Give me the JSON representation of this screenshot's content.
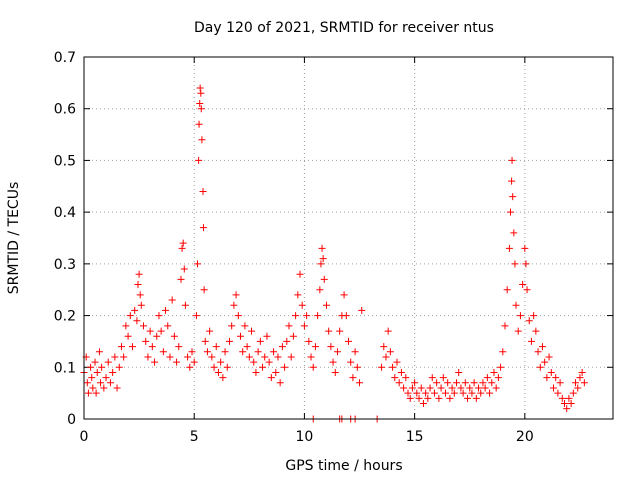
{
  "chart_data": {
    "type": "scatter",
    "title": "Day 120 of 2021, SRMTID for receiver ntus",
    "xlabel": "GPS time / hours",
    "ylabel": "SRMTID / TECUs",
    "xlim": [
      0,
      24
    ],
    "ylim": [
      0,
      0.7
    ],
    "xticks": [
      0,
      5,
      10,
      15,
      20
    ],
    "yticks": [
      0,
      0.1,
      0.2,
      0.3,
      0.4,
      0.5,
      0.6,
      0.7
    ],
    "grid": true,
    "marker": "+",
    "colors": {
      "points": "#ff0000",
      "axes": "#000000",
      "grid": "#a0a0a0"
    },
    "series": [
      {
        "name": "SRMTID",
        "points": [
          [
            0.0,
            0.09
          ],
          [
            0.1,
            0.12
          ],
          [
            0.15,
            0.07
          ],
          [
            0.2,
            0.05
          ],
          [
            0.3,
            0.1
          ],
          [
            0.35,
            0.08
          ],
          [
            0.4,
            0.06
          ],
          [
            0.5,
            0.11
          ],
          [
            0.55,
            0.05
          ],
          [
            0.6,
            0.09
          ],
          [
            0.7,
            0.13
          ],
          [
            0.75,
            0.07
          ],
          [
            0.8,
            0.1
          ],
          [
            0.9,
            0.06
          ],
          [
            1.0,
            0.08
          ],
          [
            1.1,
            0.11
          ],
          [
            1.2,
            0.07
          ],
          [
            1.3,
            0.09
          ],
          [
            1.4,
            0.12
          ],
          [
            1.5,
            0.06
          ],
          [
            1.6,
            0.1
          ],
          [
            1.7,
            0.14
          ],
          [
            1.8,
            0.12
          ],
          [
            1.9,
            0.18
          ],
          [
            2.0,
            0.16
          ],
          [
            2.1,
            0.2
          ],
          [
            2.2,
            0.14
          ],
          [
            2.3,
            0.21
          ],
          [
            2.4,
            0.19
          ],
          [
            2.45,
            0.26
          ],
          [
            2.5,
            0.28
          ],
          [
            2.55,
            0.24
          ],
          [
            2.6,
            0.22
          ],
          [
            2.7,
            0.18
          ],
          [
            2.8,
            0.15
          ],
          [
            2.9,
            0.12
          ],
          [
            3.0,
            0.17
          ],
          [
            3.1,
            0.14
          ],
          [
            3.2,
            0.11
          ],
          [
            3.3,
            0.16
          ],
          [
            3.4,
            0.2
          ],
          [
            3.5,
            0.17
          ],
          [
            3.6,
            0.13
          ],
          [
            3.7,
            0.21
          ],
          [
            3.8,
            0.18
          ],
          [
            3.9,
            0.12
          ],
          [
            4.0,
            0.23
          ],
          [
            4.1,
            0.16
          ],
          [
            4.2,
            0.11
          ],
          [
            4.3,
            0.14
          ],
          [
            4.4,
            0.27
          ],
          [
            4.45,
            0.33
          ],
          [
            4.5,
            0.34
          ],
          [
            4.55,
            0.29
          ],
          [
            4.6,
            0.22
          ],
          [
            4.7,
            0.12
          ],
          [
            4.8,
            0.1
          ],
          [
            4.9,
            0.13
          ],
          [
            5.0,
            0.11
          ],
          [
            5.1,
            0.2
          ],
          [
            5.15,
            0.3
          ],
          [
            5.2,
            0.5
          ],
          [
            5.22,
            0.57
          ],
          [
            5.25,
            0.61
          ],
          [
            5.27,
            0.64
          ],
          [
            5.3,
            0.63
          ],
          [
            5.32,
            0.6
          ],
          [
            5.35,
            0.54
          ],
          [
            5.4,
            0.44
          ],
          [
            5.42,
            0.37
          ],
          [
            5.45,
            0.25
          ],
          [
            5.5,
            0.15
          ],
          [
            5.6,
            0.13
          ],
          [
            5.7,
            0.17
          ],
          [
            5.8,
            0.12
          ],
          [
            5.9,
            0.1
          ],
          [
            6.0,
            0.14
          ],
          [
            6.1,
            0.09
          ],
          [
            6.2,
            0.11
          ],
          [
            6.3,
            0.08
          ],
          [
            6.4,
            0.13
          ],
          [
            6.5,
            0.1
          ],
          [
            6.6,
            0.15
          ],
          [
            6.7,
            0.18
          ],
          [
            6.8,
            0.22
          ],
          [
            6.9,
            0.24
          ],
          [
            7.0,
            0.2
          ],
          [
            7.1,
            0.16
          ],
          [
            7.2,
            0.13
          ],
          [
            7.3,
            0.18
          ],
          [
            7.4,
            0.14
          ],
          [
            7.5,
            0.12
          ],
          [
            7.6,
            0.17
          ],
          [
            7.7,
            0.11
          ],
          [
            7.8,
            0.09
          ],
          [
            7.9,
            0.13
          ],
          [
            8.0,
            0.15
          ],
          [
            8.1,
            0.1
          ],
          [
            8.2,
            0.12
          ],
          [
            8.3,
            0.16
          ],
          [
            8.4,
            0.11
          ],
          [
            8.5,
            0.08
          ],
          [
            8.6,
            0.13
          ],
          [
            8.7,
            0.09
          ],
          [
            8.8,
            0.12
          ],
          [
            8.9,
            0.07
          ],
          [
            9.0,
            0.14
          ],
          [
            9.1,
            0.1
          ],
          [
            9.2,
            0.15
          ],
          [
            9.3,
            0.18
          ],
          [
            9.4,
            0.12
          ],
          [
            9.5,
            0.16
          ],
          [
            9.6,
            0.2
          ],
          [
            9.7,
            0.24
          ],
          [
            9.8,
            0.28
          ],
          [
            9.9,
            0.22
          ],
          [
            10.0,
            0.18
          ],
          [
            10.1,
            0.2
          ],
          [
            10.2,
            0.15
          ],
          [
            10.3,
            0.12
          ],
          [
            10.4,
            0.1
          ],
          [
            10.5,
            0.14
          ],
          [
            10.6,
            0.2
          ],
          [
            10.7,
            0.25
          ],
          [
            10.75,
            0.3
          ],
          [
            10.8,
            0.33
          ],
          [
            10.85,
            0.31
          ],
          [
            10.9,
            0.27
          ],
          [
            11.0,
            0.22
          ],
          [
            11.1,
            0.17
          ],
          [
            11.2,
            0.14
          ],
          [
            11.3,
            0.11
          ],
          [
            11.4,
            0.09
          ],
          [
            11.5,
            0.13
          ],
          [
            11.6,
            0.17
          ],
          [
            11.7,
            0.2
          ],
          [
            11.8,
            0.24
          ],
          [
            11.9,
            0.2
          ],
          [
            12.0,
            0.15
          ],
          [
            12.1,
            0.11
          ],
          [
            12.2,
            0.08
          ],
          [
            12.3,
            0.13
          ],
          [
            12.4,
            0.1
          ],
          [
            12.5,
            0.07
          ],
          [
            12.6,
            0.21
          ],
          [
            13.5,
            0.1
          ],
          [
            13.6,
            0.14
          ],
          [
            13.7,
            0.12
          ],
          [
            13.8,
            0.17
          ],
          [
            13.9,
            0.13
          ],
          [
            14.0,
            0.1
          ],
          [
            14.1,
            0.08
          ],
          [
            14.2,
            0.11
          ],
          [
            14.3,
            0.07
          ],
          [
            14.4,
            0.09
          ],
          [
            14.5,
            0.06
          ],
          [
            14.6,
            0.08
          ],
          [
            14.7,
            0.05
          ],
          [
            14.8,
            0.04
          ],
          [
            14.9,
            0.06
          ],
          [
            15.0,
            0.07
          ],
          [
            15.1,
            0.05
          ],
          [
            15.2,
            0.04
          ],
          [
            15.3,
            0.06
          ],
          [
            15.4,
            0.03
          ],
          [
            15.5,
            0.05
          ],
          [
            15.6,
            0.04
          ],
          [
            15.7,
            0.06
          ],
          [
            15.8,
            0.08
          ],
          [
            15.9,
            0.05
          ],
          [
            16.0,
            0.07
          ],
          [
            16.1,
            0.04
          ],
          [
            16.2,
            0.06
          ],
          [
            16.3,
            0.08
          ],
          [
            16.4,
            0.05
          ],
          [
            16.5,
            0.07
          ],
          [
            16.6,
            0.04
          ],
          [
            16.7,
            0.06
          ],
          [
            16.8,
            0.05
          ],
          [
            16.9,
            0.07
          ],
          [
            17.0,
            0.09
          ],
          [
            17.1,
            0.06
          ],
          [
            17.2,
            0.05
          ],
          [
            17.3,
            0.07
          ],
          [
            17.4,
            0.04
          ],
          [
            17.5,
            0.06
          ],
          [
            17.6,
            0.05
          ],
          [
            17.7,
            0.07
          ],
          [
            17.8,
            0.04
          ],
          [
            17.9,
            0.06
          ],
          [
            18.0,
            0.05
          ],
          [
            18.1,
            0.07
          ],
          [
            18.2,
            0.06
          ],
          [
            18.3,
            0.08
          ],
          [
            18.4,
            0.05
          ],
          [
            18.5,
            0.07
          ],
          [
            18.6,
            0.09
          ],
          [
            18.7,
            0.06
          ],
          [
            18.8,
            0.08
          ],
          [
            18.9,
            0.1
          ],
          [
            19.0,
            0.13
          ],
          [
            19.1,
            0.18
          ],
          [
            19.2,
            0.25
          ],
          [
            19.3,
            0.33
          ],
          [
            19.35,
            0.4
          ],
          [
            19.4,
            0.46
          ],
          [
            19.42,
            0.5
          ],
          [
            19.45,
            0.43
          ],
          [
            19.5,
            0.36
          ],
          [
            19.55,
            0.3
          ],
          [
            19.6,
            0.22
          ],
          [
            19.7,
            0.17
          ],
          [
            19.8,
            0.2
          ],
          [
            19.9,
            0.26
          ],
          [
            20.0,
            0.33
          ],
          [
            20.05,
            0.3
          ],
          [
            20.1,
            0.25
          ],
          [
            20.2,
            0.19
          ],
          [
            20.3,
            0.15
          ],
          [
            20.4,
            0.2
          ],
          [
            20.5,
            0.17
          ],
          [
            20.6,
            0.13
          ],
          [
            20.7,
            0.1
          ],
          [
            20.8,
            0.14
          ],
          [
            20.9,
            0.11
          ],
          [
            21.0,
            0.08
          ],
          [
            21.1,
            0.12
          ],
          [
            21.2,
            0.09
          ],
          [
            21.3,
            0.06
          ],
          [
            21.4,
            0.08
          ],
          [
            21.5,
            0.05
          ],
          [
            21.6,
            0.07
          ],
          [
            21.7,
            0.04
          ],
          [
            21.8,
            0.03
          ],
          [
            21.9,
            0.02
          ],
          [
            22.0,
            0.04
          ],
          [
            22.1,
            0.03
          ],
          [
            22.2,
            0.05
          ],
          [
            22.3,
            0.07
          ],
          [
            22.4,
            0.06
          ],
          [
            22.5,
            0.08
          ],
          [
            22.6,
            0.09
          ],
          [
            22.7,
            0.07
          ]
        ],
        "zero_points": [
          10.4,
          11.6,
          11.7,
          12.1,
          12.3,
          13.3
        ]
      }
    ]
  }
}
